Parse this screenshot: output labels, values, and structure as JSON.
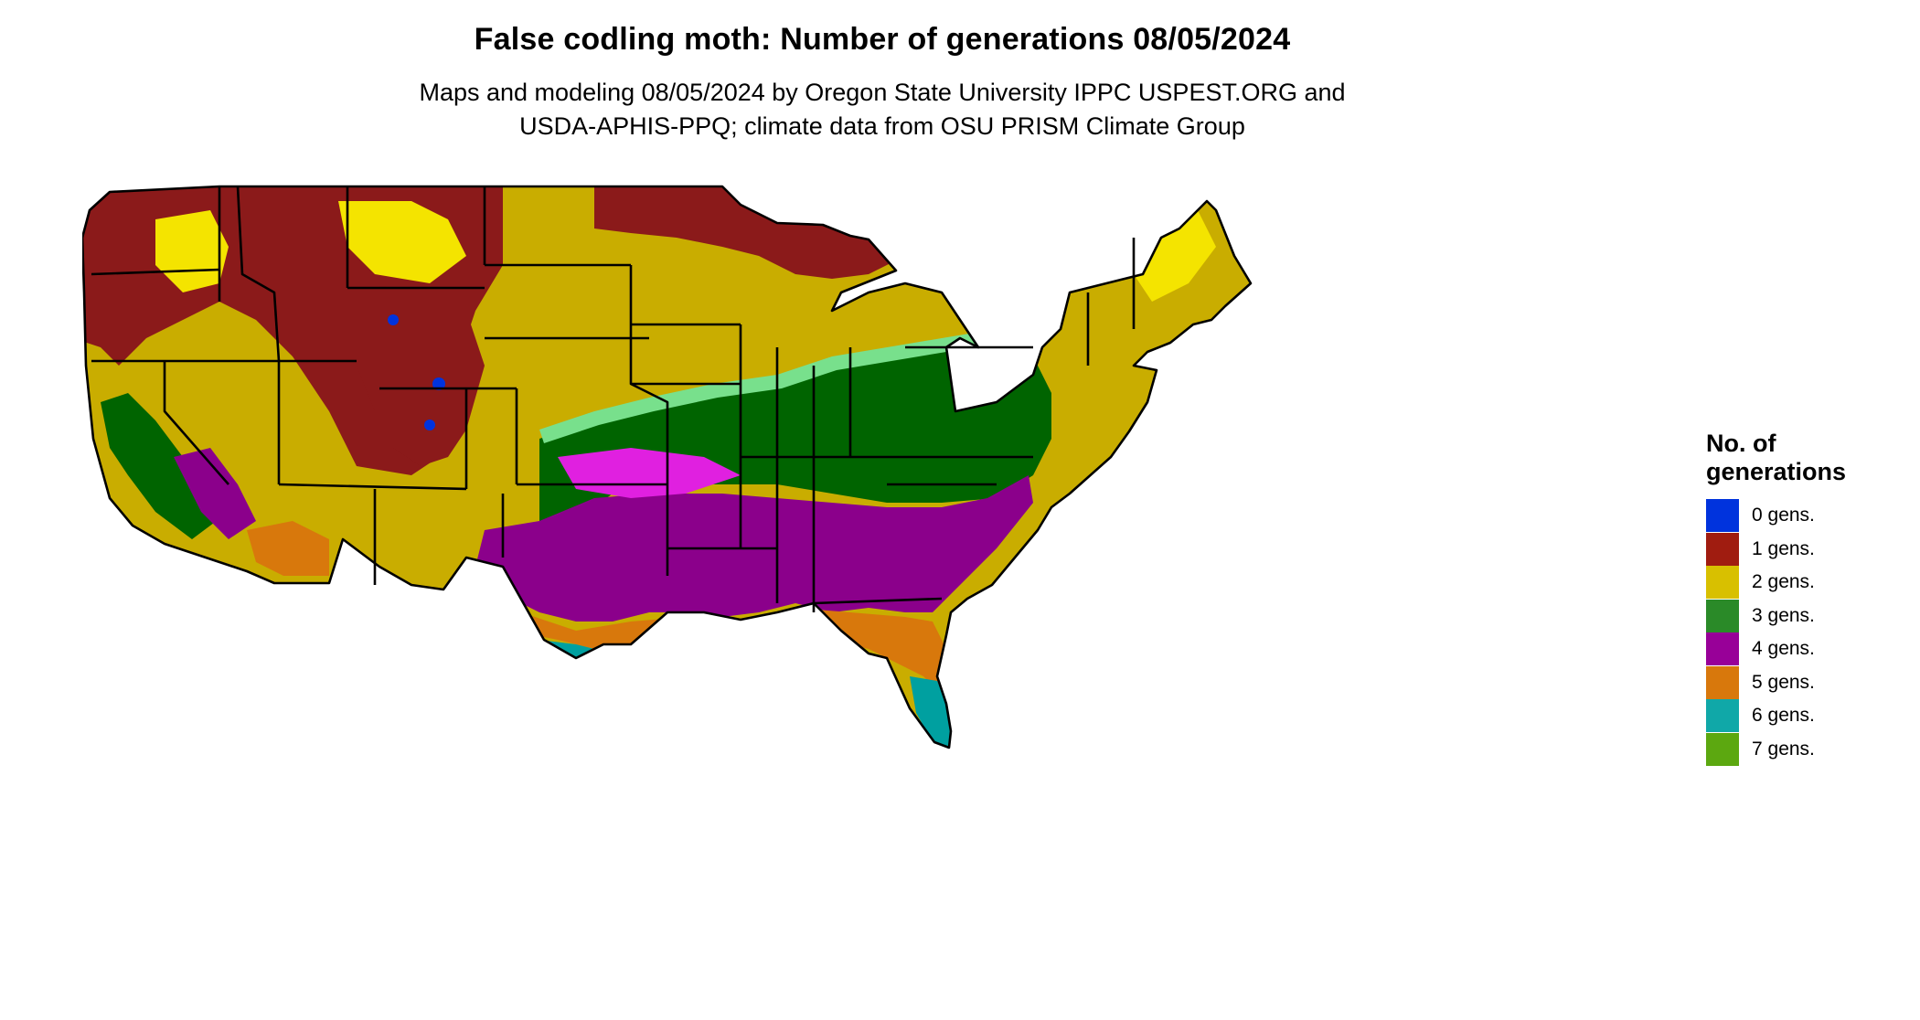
{
  "title": "False codling moth: Number of generations 08/05/2024",
  "subtitle_line1": "Maps and modeling 08/05/2024 by Oregon State University IPPC USPEST.ORG and",
  "subtitle_line2": "USDA-APHIS-PPQ; climate data from OSU PRISM Climate Group",
  "legend": {
    "title_line1": "No. of",
    "title_line2": "generations",
    "items": [
      {
        "label": "0 gens.",
        "color": "#0033dd"
      },
      {
        "label": "1 gens.",
        "color": "#a01c10"
      },
      {
        "label": "2 gens.",
        "color": "#d8c000"
      },
      {
        "label": "3 gens.",
        "color": "#2a8a28"
      },
      {
        "label": "4 gens.",
        "color": "#980098"
      },
      {
        "label": "5 gens.",
        "color": "#d8780c"
      },
      {
        "label": "6 gens.",
        "color": "#10a8a8"
      },
      {
        "label": "7 gens.",
        "color": "#5ca810"
      }
    ]
  },
  "map_colors": {
    "ocean": "#ffffff",
    "one_gen_dark": "#8b1a1a",
    "two_gen_dark": "#c9ad00",
    "two_gen_bright": "#f4e400",
    "three_gen_dark": "#006400",
    "three_gen_light": "#78e08c",
    "four_gen_dark": "#8b008b",
    "four_gen_bright": "#e020e0",
    "five_gen": "#d8780c",
    "six_gen": "#00a0a0",
    "six_gen_bright": "#00e0e0",
    "zero_gen": "#0033dd",
    "state_border": "#000000"
  }
}
